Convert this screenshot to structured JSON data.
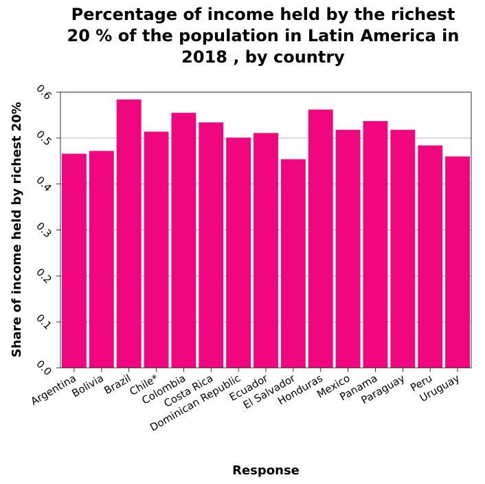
{
  "chart_data": {
    "type": "bar",
    "title_lines": [
      "Percentage of income held by the richest",
      "20 % of the population in Latin America in",
      "2018 , by country"
    ],
    "xlabel": "Response",
    "ylabel": "Share of income held by richest 20%",
    "categories": [
      "Argentina",
      "Bolivia",
      "Brazil",
      "Chile*",
      "Colombia",
      "Costa Rica",
      "Dominican Republic",
      "Ecuador",
      "El Salvador",
      "Honduras",
      "Mexico",
      "Panama",
      "Paraguay",
      "Peru",
      "Uruguay"
    ],
    "values": [
      0.466,
      0.472,
      0.584,
      0.514,
      0.555,
      0.534,
      0.501,
      0.511,
      0.454,
      0.562,
      0.518,
      0.537,
      0.518,
      0.484,
      0.46
    ],
    "ylim": [
      0,
      0.6
    ],
    "yticks": [
      "0.0",
      "0.1",
      "0.2",
      "0.3",
      "0.4",
      "0.5",
      "0.6"
    ],
    "grid": true,
    "bar_color": "#f0077f"
  }
}
